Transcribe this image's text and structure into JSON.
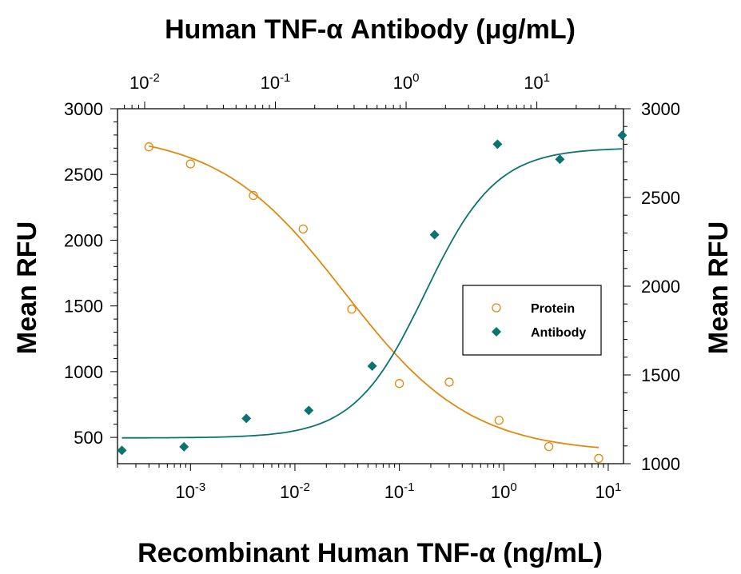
{
  "chart_data": {
    "type": "scatter",
    "title": "Human TNF-α Antibody (μg/mL)",
    "xlabel": "Recombinant Human TNF-α (ng/mL)",
    "ylabel": "Mean RFU",
    "y2label": "Mean RFU",
    "x_scale": "log",
    "x_bottom": {
      "range": [
        0.0002,
        14
      ],
      "ticks": [
        {
          "value": 0.001,
          "base": "10",
          "exp": "-3"
        },
        {
          "value": 0.01,
          "base": "10",
          "exp": "-2"
        },
        {
          "value": 0.1,
          "base": "10",
          "exp": "-1"
        },
        {
          "value": 1,
          "base": "10",
          "exp": "0"
        },
        {
          "value": 10,
          "base": "10",
          "exp": "1"
        }
      ]
    },
    "x_top": {
      "range": [
        0.0062,
        46
      ],
      "ticks": [
        {
          "value": 0.01,
          "base": "10",
          "exp": "-2"
        },
        {
          "value": 0.1,
          "base": "10",
          "exp": "-1"
        },
        {
          "value": 1,
          "base": "10",
          "exp": "0"
        },
        {
          "value": 10,
          "base": "10",
          "exp": "1"
        }
      ]
    },
    "y_left": {
      "range": [
        300,
        3000
      ],
      "ticks": [
        "500",
        "1000",
        "1500",
        "2000",
        "2500",
        "3000"
      ]
    },
    "y_right": {
      "range": [
        1000,
        3000
      ],
      "ticks": [
        "1000",
        "1500",
        "2000",
        "2500",
        "3000"
      ]
    },
    "grid": false,
    "legend_position": "center-right",
    "series": [
      {
        "name": "Protein",
        "axis": "bottom-left",
        "marker": "open-circle",
        "color": "#e0890f",
        "x": [
          0.0004,
          0.001,
          0.004,
          0.012,
          0.035,
          0.1,
          0.3,
          0.9,
          2.7,
          8.1
        ],
        "y": [
          2710,
          2580,
          2340,
          2085,
          1475,
          910,
          920,
          630,
          430,
          340
        ],
        "fit": {
          "top": 2820,
          "bottom": 380,
          "ec50": 0.03,
          "hill": 0.72
        }
      },
      {
        "name": "Antibody",
        "axis": "top-right",
        "marker": "filled-diamond",
        "color": "#0c7470",
        "x": [
          0.0067,
          0.02,
          0.06,
          0.18,
          0.55,
          1.65,
          5.0,
          15,
          45
        ],
        "y": [
          1075,
          1095,
          1255,
          1300,
          1550,
          2290,
          2800,
          2715,
          2850
        ],
        "fit": {
          "top": 2780,
          "bottom": 1145,
          "ec50": 1.4,
          "hill": 1.6
        }
      }
    ]
  }
}
